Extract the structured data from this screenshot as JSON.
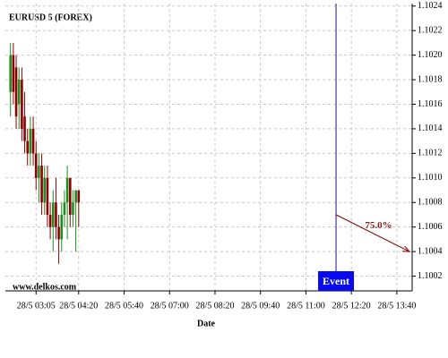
{
  "chart_data": {
    "type": "candlestick",
    "title": "EURUSD 5 (FOREX)",
    "watermark": "www.delkos.com",
    "x_label": "Date",
    "x": [
      140,
      145,
      150,
      155,
      160,
      165,
      170,
      175,
      180,
      185,
      190,
      195,
      200,
      205,
      210,
      215,
      220,
      225,
      230,
      235,
      240,
      245,
      250,
      255,
      260
    ],
    "open": [
      1.1017,
      1.102,
      1.1019,
      1.1016,
      1.1018,
      1.1015,
      1.1013,
      1.1012,
      1.1014,
      1.1012,
      1.101,
      1.1011,
      1.1008,
      1.101,
      1.1007,
      1.1006,
      1.1008,
      1.1006,
      1.1005,
      1.1007,
      1.1008,
      1.101,
      1.1007,
      1.1008,
      1.1009
    ],
    "high": [
      1.1021,
      1.1021,
      1.102,
      1.1019,
      1.1019,
      1.1017,
      1.1014,
      1.1015,
      1.1015,
      1.1013,
      1.1012,
      1.1012,
      1.1011,
      1.1011,
      1.1008,
      1.1009,
      1.101,
      1.1007,
      1.1008,
      1.1009,
      1.1011,
      1.101,
      1.1009,
      1.1009,
      1.1009
    ],
    "low": [
      1.1015,
      1.1016,
      1.1014,
      1.1014,
      1.1013,
      1.1012,
      1.1011,
      1.1011,
      1.1011,
      1.1009,
      1.1008,
      1.1007,
      1.1007,
      1.1006,
      1.1005,
      1.1004,
      1.1005,
      1.1003,
      1.1004,
      1.1006,
      1.1005,
      1.1006,
      1.1006,
      1.1004,
      1.1006
    ],
    "close": [
      1.102,
      1.1017,
      1.1015,
      1.1018,
      1.1014,
      1.1013,
      1.1012,
      1.1014,
      1.1012,
      1.101,
      1.1011,
      1.1008,
      1.101,
      1.1007,
      1.1006,
      1.1008,
      1.1006,
      1.1005,
      1.1007,
      1.1008,
      1.101,
      1.1007,
      1.1008,
      1.1009,
      1.1008
    ],
    "up_color": "#1e8c1e",
    "down_color": "#8b0000",
    "xlim": [
      131,
      847
    ],
    "xticks": [
      {
        "value": 185,
        "label": "28/5 03:05"
      },
      {
        "value": 260,
        "label": "28/5 04:20"
      },
      {
        "value": 340,
        "label": "28/5 05:40"
      },
      {
        "value": 420,
        "label": "28/5 07:00"
      },
      {
        "value": 500,
        "label": "28/5 08:20"
      },
      {
        "value": 580,
        "label": "28/5 09:40"
      },
      {
        "value": 660,
        "label": "28/5 11:00"
      },
      {
        "value": 740,
        "label": "28/5 12:20"
      },
      {
        "value": 820,
        "label": "28/5 13:40"
      }
    ],
    "ylim": [
      1.10008,
      1.10242
    ],
    "yticks": [
      1.1002,
      1.1004,
      1.1006,
      1.1008,
      {
        "value": 1.101,
        "label": "1.1010"
      },
      1.1012,
      1.1014,
      1.1016,
      1.1018,
      {
        "value": 1.102,
        "label": "1.1020"
      },
      1.1022,
      1.1024
    ],
    "grid": true,
    "event": {
      "label": "Event",
      "x": 713
    },
    "forecast": {
      "label": "75.0%",
      "x": [
        713,
        847
      ],
      "y": [
        1.1007,
        1.1004
      ],
      "color": "#8b1a1a"
    }
  }
}
